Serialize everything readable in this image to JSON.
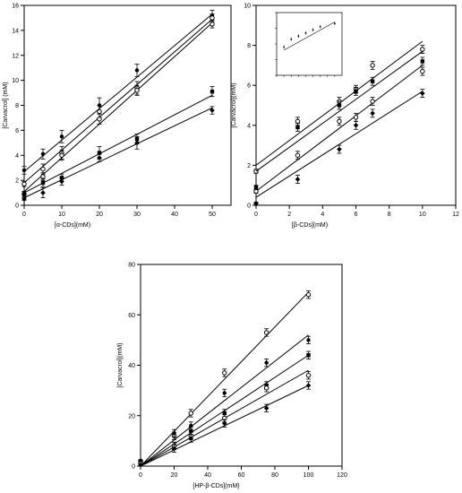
{
  "chart_data": [
    {
      "type": "scatter",
      "xlabel": "[α-CDs](mM)",
      "ylabel": "[Carvacrol] (mM)",
      "xlim": [
        0,
        55
      ],
      "ylim": [
        0,
        16
      ],
      "xticks": [
        "0",
        "10",
        "20",
        "30",
        "40",
        "50"
      ],
      "yticks": [
        "0",
        "2",
        "4",
        "6",
        "8",
        "10",
        "12",
        "14",
        "16"
      ],
      "xtick_values": [
        0,
        10,
        20,
        30,
        40,
        50
      ],
      "ytick_values": [
        0,
        2,
        4,
        6,
        8,
        10,
        12,
        14,
        16
      ],
      "series": [
        {
          "marker": "filled-circle",
          "x": [
            0,
            5,
            10,
            20,
            30,
            50
          ],
          "y": [
            2.8,
            4.1,
            5.5,
            8.0,
            10.8,
            15.2
          ],
          "err": [
            0.3,
            0.4,
            0.5,
            0.6,
            0.5,
            0.4
          ],
          "fit": [
            2.7,
            15.3
          ]
        },
        {
          "marker": "open-circle",
          "x": [
            0,
            5,
            10,
            20,
            30,
            50
          ],
          "y": [
            1.7,
            2.9,
            4.2,
            7.5,
            9.4,
            15.0
          ],
          "err": [
            0.2,
            0.4,
            0.5,
            0.5,
            0.5,
            0.3
          ],
          "fit": [
            1.8,
            14.9
          ]
        },
        {
          "marker": "open-circle",
          "x": [
            0,
            5,
            10,
            20,
            30,
            50
          ],
          "y": [
            0.9,
            2.3,
            4.0,
            6.9,
            9.2,
            14.5
          ],
          "err": [
            0.2,
            0.3,
            0.4,
            0.4,
            0.4,
            0.3
          ],
          "fit": [
            1.1,
            14.6
          ]
        },
        {
          "marker": "filled-square",
          "x": [
            0,
            5,
            10,
            20,
            30,
            50
          ],
          "y": [
            0.9,
            1.8,
            2.2,
            4.2,
            5.3,
            9.1
          ],
          "err": [
            0.2,
            0.3,
            0.3,
            0.5,
            0.4,
            0.4
          ],
          "fit": [
            1.0,
            8.8
          ]
        },
        {
          "marker": "filled-diamond",
          "x": [
            0,
            5,
            10,
            20,
            30,
            50
          ],
          "y": [
            0.5,
            1.0,
            1.9,
            3.8,
            5.0,
            7.6
          ],
          "err": [
            0.1,
            0.4,
            0.3,
            0.3,
            0.5,
            0.3
          ],
          "fit": [
            0.6,
            7.8
          ]
        }
      ]
    },
    {
      "type": "scatter",
      "xlabel": "[β-CDs](mM)",
      "ylabel": "[Carvacrol](mM)",
      "xlim": [
        0,
        12
      ],
      "ylim": [
        0,
        10
      ],
      "xticks": [
        "0",
        "2",
        "4",
        "6",
        "8",
        "10",
        "12"
      ],
      "yticks": [
        "0",
        "2",
        "4",
        "6",
        "8",
        "10"
      ],
      "xtick_values": [
        0,
        2,
        4,
        6,
        8,
        10,
        12
      ],
      "ytick_values": [
        0,
        2,
        4,
        6,
        8,
        10
      ],
      "series": [
        {
          "marker": "open-circle",
          "x": [
            0,
            2.5,
            5,
            6,
            7,
            10
          ],
          "y": [
            1.7,
            4.2,
            5.2,
            5.8,
            7.0,
            7.8
          ],
          "err": [
            0.1,
            0.2,
            0.2,
            0.2,
            0.2,
            0.2
          ],
          "fit": [
            2.0,
            8.2
          ]
        },
        {
          "marker": "filled-square",
          "x": [
            0,
            2.5,
            5,
            6,
            7,
            10
          ],
          "y": [
            0.9,
            3.9,
            5.0,
            5.7,
            6.2,
            7.2
          ],
          "err": [
            0.1,
            0.2,
            0.2,
            0.2,
            0.2,
            0.2
          ],
          "fit": [
            1.7,
            7.7
          ]
        },
        {
          "marker": "open-circle",
          "x": [
            0,
            2.5,
            5,
            6,
            7,
            10
          ],
          "y": [
            0.7,
            2.5,
            4.2,
            4.4,
            5.2,
            6.7
          ],
          "err": [
            0.1,
            0.2,
            0.2,
            0.2,
            0.2,
            0.2
          ],
          "fit": [
            0.7,
            7.0
          ]
        },
        {
          "marker": "filled-diamond",
          "x": [
            0,
            2.5,
            5,
            6,
            7,
            10
          ],
          "y": [
            0.1,
            1.3,
            2.8,
            4.0,
            4.6,
            5.6
          ],
          "err": [
            0.05,
            0.2,
            0.2,
            0.2,
            0.2,
            0.2
          ],
          "fit": [
            0.4,
            5.7
          ]
        }
      ],
      "inset": {
        "x": [
          1,
          2,
          3,
          4,
          5,
          6,
          8
        ],
        "y": [
          1.8,
          2.3,
          2.5,
          2.7,
          2.9,
          3.1,
          3.3
        ],
        "fit": [
          1.6,
          3.4
        ],
        "xlim": [
          0,
          9
        ],
        "ylim": [
          0,
          4
        ]
      }
    },
    {
      "type": "scatter",
      "xlabel": "[HP-β-CDs](mM)",
      "ylabel": "[Carvacrol](mM)",
      "xlim": [
        0,
        120
      ],
      "ylim": [
        0,
        80
      ],
      "xticks": [
        "0",
        "20",
        "40",
        "60",
        "80",
        "100",
        "120"
      ],
      "yticks": [
        "0",
        "20",
        "40",
        "60",
        "80"
      ],
      "xtick_values": [
        0,
        20,
        40,
        60,
        80,
        100,
        120
      ],
      "ytick_values": [
        0,
        20,
        40,
        60,
        80
      ],
      "series": [
        {
          "marker": "open-circle",
          "x": [
            0,
            20,
            30,
            50,
            75,
            100
          ],
          "y": [
            2,
            12,
            21,
            37,
            53,
            68
          ],
          "err": [
            0.5,
            1.5,
            1.5,
            1.5,
            1.5,
            1.5
          ],
          "fit": [
            0,
            69
          ]
        },
        {
          "marker": "filled-circle",
          "x": [
            0,
            20,
            30,
            50,
            75,
            100
          ],
          "y": [
            2,
            13,
            16,
            29,
            41,
            50
          ],
          "err": [
            0.5,
            1.5,
            1.5,
            1.5,
            1.5,
            1.5
          ],
          "fit": [
            0,
            52
          ]
        },
        {
          "marker": "filled-square",
          "x": [
            0,
            20,
            30,
            50,
            75,
            100
          ],
          "y": [
            1.5,
            8,
            14,
            21,
            32,
            44
          ],
          "err": [
            0.5,
            1.5,
            1.5,
            1.5,
            1.5,
            1.5
          ],
          "fit": [
            0,
            44
          ]
        },
        {
          "marker": "open-circle",
          "x": [
            0,
            20,
            30,
            50,
            75,
            100
          ],
          "y": [
            1,
            8,
            12,
            19,
            31,
            36
          ],
          "err": [
            0.5,
            1.5,
            1.5,
            1.5,
            1.5,
            1.5
          ],
          "fit": [
            0,
            38
          ]
        },
        {
          "marker": "filled-diamond",
          "x": [
            0,
            20,
            30,
            50,
            75,
            100
          ],
          "y": [
            0.5,
            7,
            11,
            17,
            23,
            32
          ],
          "err": [
            0.5,
            1.5,
            1.5,
            1.5,
            1.5,
            1.5
          ],
          "fit": [
            0,
            32
          ]
        }
      ]
    }
  ]
}
